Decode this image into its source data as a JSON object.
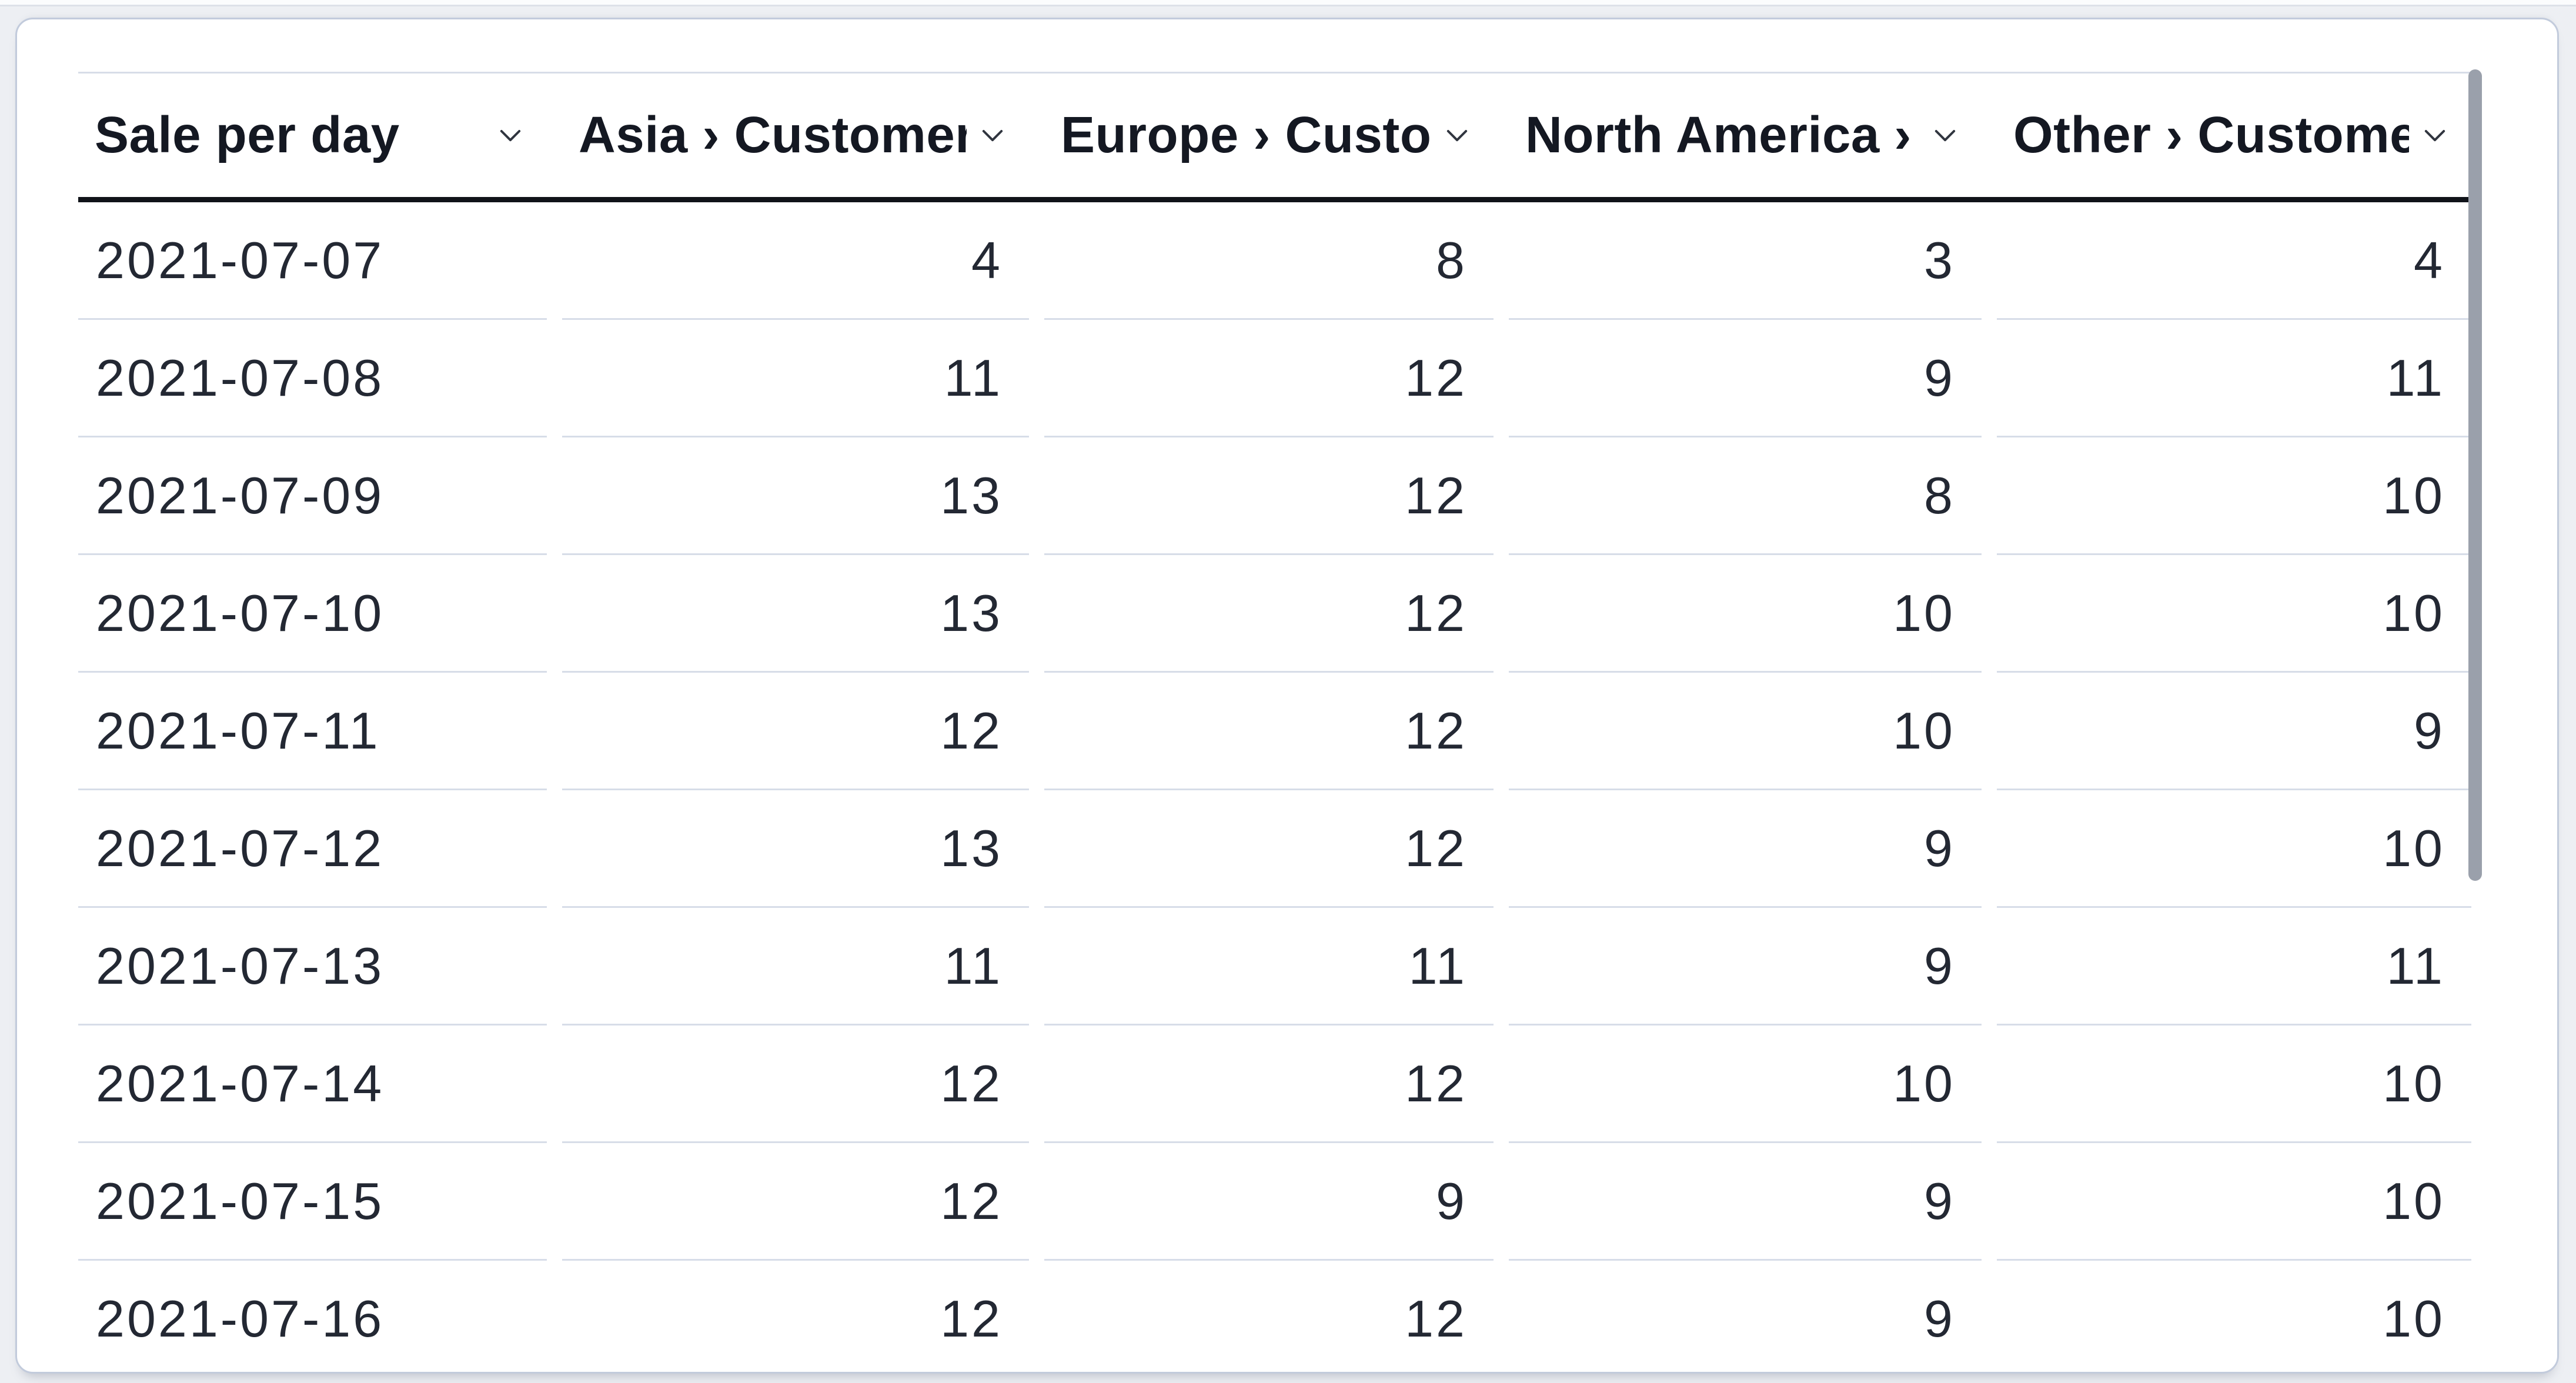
{
  "widget": {
    "kind": "table-card"
  },
  "table": {
    "columns": [
      {
        "id": "date",
        "label": "Sale per day",
        "align": "left",
        "sort_icon": "chevron-down"
      },
      {
        "id": "asia",
        "label": "Asia › Customers",
        "align": "right",
        "sort_icon": "chevron-down"
      },
      {
        "id": "europe",
        "label": "Europe › Customers",
        "align": "right",
        "sort_icon": "chevron-down"
      },
      {
        "id": "north_america",
        "label": "North America › Customers",
        "align": "right",
        "sort_icon": "chevron-down"
      },
      {
        "id": "other",
        "label": "Other › Customers",
        "align": "right",
        "sort_icon": "chevron-down"
      }
    ],
    "rows": [
      [
        "2021-07-07",
        "4",
        "8",
        "3",
        "4"
      ],
      [
        "2021-07-08",
        "11",
        "12",
        "9",
        "11"
      ],
      [
        "2021-07-09",
        "13",
        "12",
        "8",
        "10"
      ],
      [
        "2021-07-10",
        "13",
        "12",
        "10",
        "10"
      ],
      [
        "2021-07-11",
        "12",
        "12",
        "10",
        "9"
      ],
      [
        "2021-07-12",
        "13",
        "12",
        "9",
        "10"
      ],
      [
        "2021-07-13",
        "11",
        "11",
        "9",
        "11"
      ],
      [
        "2021-07-14",
        "12",
        "12",
        "10",
        "10"
      ],
      [
        "2021-07-15",
        "12",
        "9",
        "9",
        "10"
      ],
      [
        "2021-07-16",
        "12",
        "12",
        "9",
        "10"
      ]
    ]
  },
  "scrollbar": {
    "orientation": "vertical",
    "visible": true
  },
  "colors": {
    "page_background": "#edeff3",
    "card_background": "#ffffff",
    "card_border": "#c2cbdc",
    "row_divider": "#d7dde8",
    "header_underline": "#101319",
    "header_text": "#141822",
    "cell_text": "#232833",
    "scrollbar_thumb": "#9aa0ab"
  }
}
